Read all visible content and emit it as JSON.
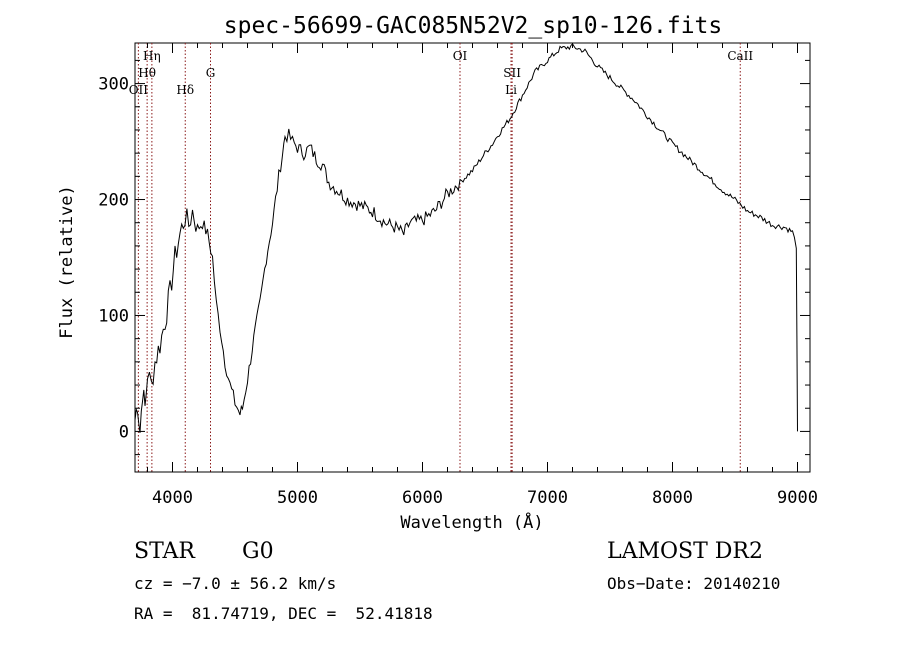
{
  "chart_data": {
    "type": "line",
    "title": "spec-56699-GAC085N52V2_sp10-126.fits",
    "xlabel": "Wavelength (Å)",
    "ylabel": "Flux (relative)",
    "xlim": [
      3700,
      9100
    ],
    "ylim": [
      -35,
      335
    ],
    "x_ticks": [
      4000,
      5000,
      6000,
      7000,
      8000,
      9000
    ],
    "y_ticks": [
      0,
      100,
      200,
      300
    ],
    "grid": false,
    "line_color": "#000000",
    "marker_color": "#8b1a1a",
    "series": [
      {
        "x": [
          3700,
          3720,
          3740,
          3760,
          3780,
          3800,
          3830,
          3860,
          3900,
          3940,
          3980,
          4020,
          4060,
          4100,
          4130,
          4160,
          4200,
          4240,
          4280,
          4320,
          4350,
          4380,
          4420,
          4460,
          4500,
          4540,
          4560,
          4600,
          4650,
          4700,
          4750,
          4800,
          4850,
          4880,
          4900,
          4930,
          4960,
          5000,
          5050,
          5100,
          5150,
          5200,
          5250,
          5300,
          5400,
          5500,
          5600,
          5700,
          5800,
          5850,
          5900,
          6000,
          6100,
          6200,
          6300,
          6400,
          6500,
          6560,
          6600,
          6700,
          6800,
          6900,
          7000,
          7100,
          7200,
          7300,
          7400,
          7500,
          7600,
          7700,
          7800,
          7900,
          8000,
          8100,
          8200,
          8300,
          8400,
          8500,
          8600,
          8700,
          8800,
          8900,
          8960,
          8990,
          9000
        ],
        "y": [
          10,
          25,
          0,
          35,
          20,
          50,
          40,
          60,
          75,
          95,
          120,
          150,
          170,
          185,
          178,
          190,
          175,
          180,
          170,
          150,
          110,
          90,
          60,
          40,
          25,
          15,
          20,
          45,
          80,
          110,
          150,
          180,
          220,
          240,
          255,
          255,
          250,
          245,
          240,
          245,
          235,
          230,
          215,
          210,
          200,
          195,
          190,
          180,
          175,
          170,
          180,
          182,
          190,
          205,
          215,
          225,
          240,
          248,
          255,
          270,
          290,
          310,
          320,
          330,
          332,
          328,
          315,
          305,
          295,
          285,
          272,
          260,
          248,
          238,
          228,
          218,
          208,
          200,
          190,
          185,
          178,
          176,
          172,
          160,
          0
        ]
      }
    ],
    "line_markers": [
      {
        "label": "Hη",
        "wavelength": 3835,
        "tier": "upper"
      },
      {
        "label": "Hθ",
        "wavelength": 3797,
        "tier": "middle"
      },
      {
        "label": "OII",
        "wavelength": 3727,
        "tier": "lower"
      },
      {
        "label": "Hδ",
        "wavelength": 4102,
        "tier": "lower"
      },
      {
        "label": "G",
        "wavelength": 4304,
        "tier": "middle"
      },
      {
        "label": "OI",
        "wavelength": 6300,
        "tier": "upper"
      },
      {
        "label": "SII",
        "wavelength": 6717,
        "tier": "middle"
      },
      {
        "label": "Li",
        "wavelength": 6708,
        "tier": "lower"
      },
      {
        "label": "CaII",
        "wavelength": 8542,
        "tier": "upper"
      }
    ]
  },
  "info": {
    "object_class": "STAR",
    "subclass": "G0",
    "survey": "LAMOST DR2",
    "cz_line": "cz = −7.0 ± 56.2 km/s",
    "obs_date_line": "Obs−Date: 20140210",
    "radec_line": "RA =  81.74719, DEC =  52.41818"
  }
}
